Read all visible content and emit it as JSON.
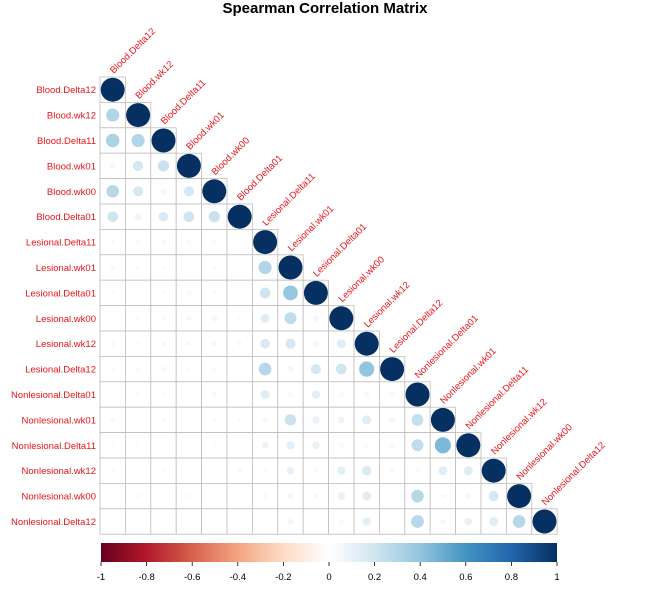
{
  "chart_data": {
    "type": "heatmap",
    "title": "Spearman Correlation Matrix",
    "variables": [
      "Blood.Delta12",
      "Blood.wk12",
      "Blood.Delta11",
      "Blood.wk01",
      "Blood.wk00",
      "Blood.Delta01",
      "Lesional.Delta11",
      "Lesional.wk01",
      "Lesional.Delta01",
      "Lesional.wk00",
      "Lesional.wk12",
      "Lesional.Delta12",
      "Nonlesional.Delta01",
      "Nonlesional.wk01",
      "Nonlesional.Delta11",
      "Nonlesional.wk12",
      "Nonlesional.wk00",
      "Nonlesional.Delta12"
    ],
    "matrix_lower": [
      [
        1
      ],
      [
        0.3,
        1
      ],
      [
        0.32,
        0.3,
        1
      ],
      [
        0.06,
        0.18,
        0.22,
        1
      ],
      [
        0.28,
        0.18,
        0.06,
        0.18,
        1
      ],
      [
        0.2,
        0.08,
        0.16,
        0.2,
        0.22,
        1
      ],
      [
        0.03,
        0.03,
        0.05,
        -0.04,
        0.04,
        0.02,
        1
      ],
      [
        0.04,
        0.03,
        0.03,
        0.02,
        0.03,
        0.02,
        0.3,
        1
      ],
      [
        0.03,
        0.02,
        0.03,
        0.04,
        0.03,
        0.02,
        0.2,
        0.38,
        1
      ],
      [
        0.02,
        0.03,
        0.04,
        0.05,
        0.06,
        0.03,
        0.14,
        0.25,
        0.06,
        1
      ],
      [
        0.04,
        0.03,
        0.04,
        0.04,
        0.05,
        0.04,
        0.16,
        0.18,
        0.06,
        0.14,
        1
      ],
      [
        0.03,
        0.04,
        0.05,
        0.03,
        0.04,
        0.02,
        0.28,
        0.06,
        0.18,
        0.2,
        0.4,
        1
      ],
      [
        0.02,
        0.03,
        0.03,
        0.02,
        0.05,
        0.02,
        0.14,
        0.05,
        0.12,
        0.05,
        0.05,
        0.05,
        1
      ],
      [
        0.04,
        0.02,
        0.03,
        0.02,
        0.03,
        0.03,
        0.05,
        0.22,
        0.1,
        0.08,
        0.14,
        0.06,
        0.24,
        1
      ],
      [
        0.03,
        0.03,
        0.02,
        0.02,
        0.03,
        0.02,
        0.08,
        0.12,
        0.1,
        0.05,
        0.04,
        0.05,
        0.25,
        0.45,
        1
      ],
      [
        0.03,
        0.02,
        0.03,
        0.02,
        0.02,
        0.04,
        0.03,
        0.1,
        0.04,
        0.12,
        0.16,
        0.05,
        0.05,
        0.14,
        0.14,
        1
      ],
      [
        0.02,
        0.03,
        0.02,
        0.03,
        0.02,
        0.02,
        0.04,
        0.06,
        0.04,
        0.1,
        0.14,
        0.03,
        0.28,
        0.04,
        0.05,
        0.18,
        1
      ],
      [
        0.02,
        0.02,
        0.02,
        0.02,
        0.02,
        0.02,
        0.02,
        0.06,
        0.02,
        0.04,
        0.12,
        0.02,
        0.28,
        0.05,
        0.1,
        0.14,
        0.28,
        1
      ]
    ],
    "colorbar": {
      "range": [
        -1,
        1
      ],
      "ticks": [
        "-1",
        "-0.8",
        "-0.6",
        "-0.4",
        "-0.2",
        "0",
        "0.2",
        "0.4",
        "0.6",
        "0.8",
        "1"
      ],
      "colors": [
        "#67001f",
        "#b2182b",
        "#d6604d",
        "#f4a582",
        "#fddbc7",
        "#ffffff",
        "#d1e5f0",
        "#92c5de",
        "#4393c3",
        "#2166ac",
        "#053061"
      ]
    }
  }
}
